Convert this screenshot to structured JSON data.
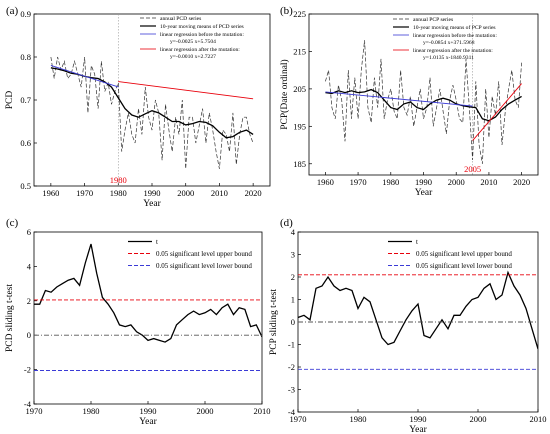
{
  "chart_data": [
    {
      "type": "line",
      "panel_label": "(a)",
      "xlabel": "Year",
      "ylabel": "PCD",
      "xlim": [
        1955,
        2025
      ],
      "ylim": [
        0.5,
        0.9
      ],
      "xticks": [
        "1960",
        "1970",
        "1980",
        "1990",
        "2000",
        "2010",
        "2020"
      ],
      "yticks": [
        "0.5",
        "0.6",
        "0.7",
        "0.8",
        "0.9"
      ],
      "mutation": {
        "year": 1980,
        "label": "1980",
        "color": "#e8000b"
      },
      "legend": [
        "annual PCD series",
        "10-year moving means of PCD series",
        "linear regression before the mutation:",
        "y=-0.0025 x+5.7504",
        "linear regression after the mutation:",
        "y=-0.0010 x+2.7227"
      ],
      "series": [
        {
          "name": "annual PCD series",
          "style": "dashed",
          "color": "#333333",
          "x": [
            1960,
            1961,
            1962,
            1963,
            1964,
            1965,
            1966,
            1967,
            1968,
            1969,
            1970,
            1971,
            1972,
            1973,
            1974,
            1975,
            1976,
            1977,
            1978,
            1979,
            1980,
            1981,
            1982,
            1983,
            1984,
            1985,
            1986,
            1987,
            1988,
            1989,
            1990,
            1991,
            1992,
            1993,
            1994,
            1995,
            1996,
            1997,
            1998,
            1999,
            2000,
            2001,
            2002,
            2003,
            2004,
            2005,
            2006,
            2007,
            2008,
            2009,
            2010,
            2011,
            2012,
            2013,
            2014,
            2015,
            2016,
            2017,
            2018,
            2019,
            2020
          ],
          "y": [
            0.8,
            0.75,
            0.8,
            0.77,
            0.79,
            0.75,
            0.76,
            0.79,
            0.76,
            0.73,
            0.8,
            0.67,
            0.78,
            0.76,
            0.68,
            0.79,
            0.72,
            0.74,
            0.69,
            0.72,
            0.74,
            0.58,
            0.63,
            0.67,
            0.62,
            0.6,
            0.68,
            0.62,
            0.73,
            0.66,
            0.63,
            0.7,
            0.67,
            0.56,
            0.69,
            0.63,
            0.58,
            0.66,
            0.62,
            0.7,
            0.54,
            0.66,
            0.66,
            0.6,
            0.64,
            0.68,
            0.6,
            0.67,
            0.63,
            0.58,
            0.54,
            0.63,
            0.62,
            0.58,
            0.67,
            0.55,
            0.62,
            0.66,
            0.66,
            0.62,
            0.6
          ]
        },
        {
          "name": "10-year moving means of PCD series",
          "style": "solid",
          "color": "#000000",
          "x": [
            1960,
            1962,
            1964,
            1966,
            1968,
            1970,
            1972,
            1974,
            1976,
            1978,
            1980,
            1982,
            1984,
            1986,
            1988,
            1990,
            1992,
            1994,
            1996,
            1998,
            2000,
            2002,
            2004,
            2006,
            2008,
            2010,
            2012,
            2014,
            2016,
            2018,
            2020
          ],
          "y": [
            0.775,
            0.772,
            0.768,
            0.762,
            0.76,
            0.755,
            0.752,
            0.75,
            0.742,
            0.73,
            0.705,
            0.68,
            0.665,
            0.66,
            0.668,
            0.675,
            0.67,
            0.66,
            0.65,
            0.65,
            0.642,
            0.645,
            0.65,
            0.648,
            0.64,
            0.625,
            0.612,
            0.615,
            0.625,
            0.63,
            0.62
          ]
        },
        {
          "name": "linear regression before the mutation",
          "style": "solid",
          "color": "#3b3bd6",
          "x": [
            1960,
            1980
          ],
          "y": [
            0.7804,
            0.7304
          ]
        },
        {
          "name": "linear regression after the mutation",
          "style": "solid",
          "color": "#e8000b",
          "x": [
            1980,
            2020
          ],
          "y": [
            0.7427,
            0.7027
          ]
        }
      ]
    },
    {
      "type": "line",
      "panel_label": "(b)",
      "xlabel": "Year",
      "ylabel": "PCP(Date ordinal)",
      "xlim": [
        1955,
        2025
      ],
      "ylim": [
        182,
        225
      ],
      "xticks": [
        "1960",
        "1970",
        "1980",
        "1990",
        "2000",
        "2010",
        "2020"
      ],
      "yticks": [
        "185",
        "195",
        "205",
        "215",
        "225"
      ],
      "mutation": {
        "year": 2005,
        "label": "2005",
        "color": "#e8000b"
      },
      "legend": [
        "annual PCP series",
        "10-year moving means of PCP series",
        "linear regression before the mutation:",
        "y=-0.0854 x+371.5968",
        "linear regression after the mutation:",
        "y=1.0135 x-1840.9311"
      ],
      "series": [
        {
          "name": "annual PCP series",
          "style": "dashed",
          "color": "#333333",
          "x": [
            1960,
            1961,
            1962,
            1963,
            1964,
            1965,
            1966,
            1967,
            1968,
            1969,
            1970,
            1971,
            1972,
            1973,
            1974,
            1975,
            1976,
            1977,
            1978,
            1979,
            1980,
            1981,
            1982,
            1983,
            1984,
            1985,
            1986,
            1987,
            1988,
            1989,
            1990,
            1991,
            1992,
            1993,
            1994,
            1995,
            1996,
            1997,
            1998,
            1999,
            2000,
            2001,
            2002,
            2003,
            2004,
            2005,
            2006,
            2007,
            2008,
            2009,
            2010,
            2011,
            2012,
            2013,
            2014,
            2015,
            2016,
            2017,
            2018,
            2019,
            2020
          ],
          "y": [
            207,
            210,
            200,
            197,
            206,
            202,
            191,
            210,
            197,
            208,
            197,
            210,
            218,
            200,
            196,
            208,
            200,
            213,
            197,
            202,
            205,
            199,
            197,
            210,
            200,
            198,
            203,
            195,
            200,
            205,
            197,
            200,
            208,
            195,
            200,
            205,
            199,
            193,
            202,
            206,
            202,
            197,
            196,
            213,
            200,
            186,
            207,
            190,
            185,
            205,
            192,
            203,
            198,
            207,
            190,
            199,
            205,
            210,
            202,
            200,
            212
          ]
        },
        {
          "name": "10-year moving means of PCP series",
          "style": "solid",
          "color": "#000000",
          "x": [
            1960,
            1962,
            1964,
            1966,
            1968,
            1970,
            1972,
            1974,
            1976,
            1978,
            1980,
            1982,
            1984,
            1986,
            1988,
            1990,
            1992,
            1994,
            1996,
            1998,
            2000,
            2002,
            2004,
            2006,
            2008,
            2010,
            2012,
            2014,
            2016,
            2018,
            2020
          ],
          "y": [
            204.0,
            203.8,
            204.5,
            204.0,
            204.5,
            204.0,
            204.2,
            204.8,
            204.0,
            202.0,
            200.0,
            199.5,
            201.0,
            201.5,
            200.0,
            199.5,
            201.0,
            202.0,
            202.5,
            202.0,
            201.0,
            200.5,
            200.2,
            200.0,
            197.0,
            196.5,
            197.5,
            199.5,
            201.0,
            202.0,
            203.0
          ]
        },
        {
          "name": "linear regression before the mutation",
          "style": "solid",
          "color": "#3b3bd6",
          "x": [
            1960,
            2005
          ],
          "y": [
            204.2,
            200.4
          ]
        },
        {
          "name": "linear regression after the mutation",
          "style": "solid",
          "color": "#e8000b",
          "x": [
            2005,
            2020
          ],
          "y": [
            191.2,
            206.4
          ]
        }
      ]
    },
    {
      "type": "line",
      "panel_label": "(c)",
      "xlabel": "Year",
      "ylabel": "PCD sliding t-test",
      "xlim": [
        1970,
        2010
      ],
      "ylim": [
        -4,
        6
      ],
      "xticks": [
        "1970",
        "1980",
        "1990",
        "2000",
        "2010"
      ],
      "yticks": [
        "-4",
        "-2",
        "0",
        "2",
        "4",
        "6"
      ],
      "legend": [
        "t",
        "0.05 significant level upper bound",
        "0.05 significant level lower bound"
      ],
      "series": [
        {
          "name": "t",
          "style": "solid",
          "color": "#000000",
          "x": [
            1970,
            1971,
            1972,
            1973,
            1974,
            1975,
            1976,
            1977,
            1978,
            1979,
            1980,
            1981,
            1982,
            1983,
            1984,
            1985,
            1986,
            1987,
            1988,
            1989,
            1990,
            1991,
            1992,
            1993,
            1994,
            1995,
            1996,
            1997,
            1998,
            1999,
            2000,
            2001,
            2002,
            2003,
            2004,
            2005,
            2006,
            2007,
            2008,
            2009,
            2010
          ],
          "y": [
            1.8,
            1.8,
            2.6,
            2.5,
            2.8,
            3.0,
            3.2,
            3.3,
            2.9,
            4.2,
            5.3,
            3.6,
            2.2,
            1.8,
            1.3,
            0.6,
            0.5,
            0.6,
            0.2,
            0.0,
            -0.3,
            -0.2,
            -0.3,
            -0.4,
            -0.2,
            0.6,
            0.9,
            1.2,
            1.4,
            1.2,
            1.3,
            1.5,
            1.2,
            1.6,
            1.8,
            1.2,
            1.6,
            1.5,
            0.5,
            0.6,
            -0.1
          ]
        },
        {
          "name": "0.05 significant level upper bound",
          "style": "dashed",
          "color": "#e8000b",
          "x": [
            1970,
            2010
          ],
          "y": [
            2.05,
            2.05
          ]
        },
        {
          "name": "0.05 significant level lower bound",
          "style": "dashed",
          "color": "#3b3bd6",
          "x": [
            1970,
            2010
          ],
          "y": [
            -2.05,
            -2.05
          ]
        },
        {
          "name": "zero",
          "style": "dashdot",
          "color": "#555555",
          "x": [
            1970,
            2010
          ],
          "y": [
            0,
            0
          ]
        }
      ]
    },
    {
      "type": "line",
      "panel_label": "(d)",
      "xlabel": "Year",
      "ylabel": "PCP sliding t-test",
      "xlim": [
        1970,
        2010
      ],
      "ylim": [
        -4,
        4
      ],
      "xticks": [
        "1970",
        "1980",
        "1990",
        "2000",
        "2010"
      ],
      "yticks": [
        "-4",
        "-3",
        "-2",
        "-1",
        "0",
        "1",
        "2",
        "3",
        "4"
      ],
      "legend": [
        "t",
        "0.05 significant level upper bound",
        "0.05 significant level lower bound"
      ],
      "series": [
        {
          "name": "t",
          "style": "solid",
          "color": "#000000",
          "x": [
            1970,
            1971,
            1972,
            1973,
            1974,
            1975,
            1976,
            1977,
            1978,
            1979,
            1980,
            1981,
            1982,
            1983,
            1984,
            1985,
            1986,
            1987,
            1988,
            1989,
            1990,
            1991,
            1992,
            1993,
            1994,
            1995,
            1996,
            1997,
            1998,
            1999,
            2000,
            2001,
            2002,
            2003,
            2004,
            2005,
            2006,
            2007,
            2008,
            2009,
            2010
          ],
          "y": [
            0.2,
            0.3,
            0.1,
            1.5,
            1.6,
            2.0,
            1.6,
            1.4,
            1.5,
            1.4,
            0.6,
            1.1,
            0.9,
            0.1,
            -0.7,
            -1.0,
            -0.9,
            -0.4,
            0.1,
            0.5,
            0.8,
            -0.6,
            -0.7,
            -0.3,
            0.1,
            -0.3,
            0.3,
            0.3,
            0.7,
            1.0,
            1.1,
            1.5,
            1.7,
            1.0,
            1.2,
            2.2,
            1.6,
            1.2,
            0.6,
            -0.3,
            -1.2
          ]
        },
        {
          "name": "0.05 significant level upper bound",
          "style": "dashed",
          "color": "#e8000b",
          "x": [
            1970,
            2010
          ],
          "y": [
            2.1,
            2.1
          ]
        },
        {
          "name": "0.05 significant level lower bound",
          "style": "dashed",
          "color": "#3b3bd6",
          "x": [
            1970,
            2010
          ],
          "y": [
            -2.1,
            -2.1
          ]
        },
        {
          "name": "zero",
          "style": "dashdot",
          "color": "#555555",
          "x": [
            1970,
            2010
          ],
          "y": [
            0,
            0
          ]
        }
      ]
    }
  ]
}
